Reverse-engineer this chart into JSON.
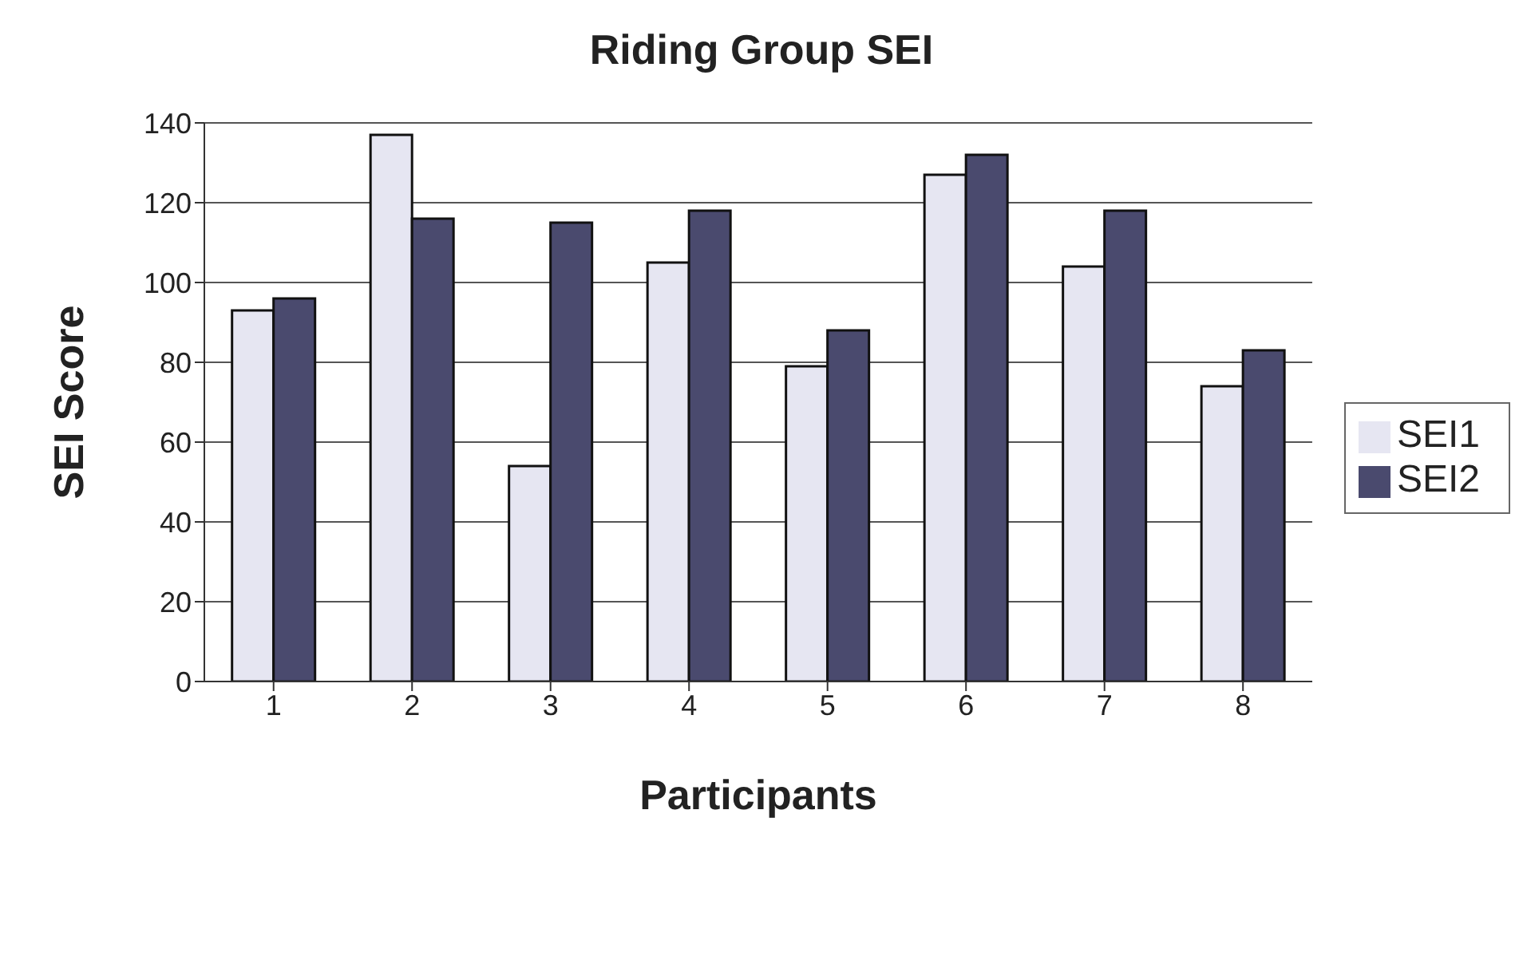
{
  "chart_data": {
    "type": "bar",
    "title": "Riding Group SEI",
    "xlabel": "Participants",
    "ylabel": "SEI Score",
    "categories": [
      "1",
      "2",
      "3",
      "4",
      "5",
      "6",
      "7",
      "8"
    ],
    "series": [
      {
        "name": "SEI1",
        "color": "#e6e6f2",
        "values": [
          93,
          137,
          54,
          105,
          79,
          127,
          104,
          74
        ]
      },
      {
        "name": "SEI2",
        "color": "#4a4a6e",
        "values": [
          96,
          116,
          115,
          118,
          88,
          132,
          118,
          83
        ]
      }
    ],
    "ylim": [
      0,
      140
    ],
    "yticks": [
      0,
      20,
      40,
      60,
      80,
      100,
      120,
      140
    ],
    "grid": "y",
    "legend": "right"
  }
}
